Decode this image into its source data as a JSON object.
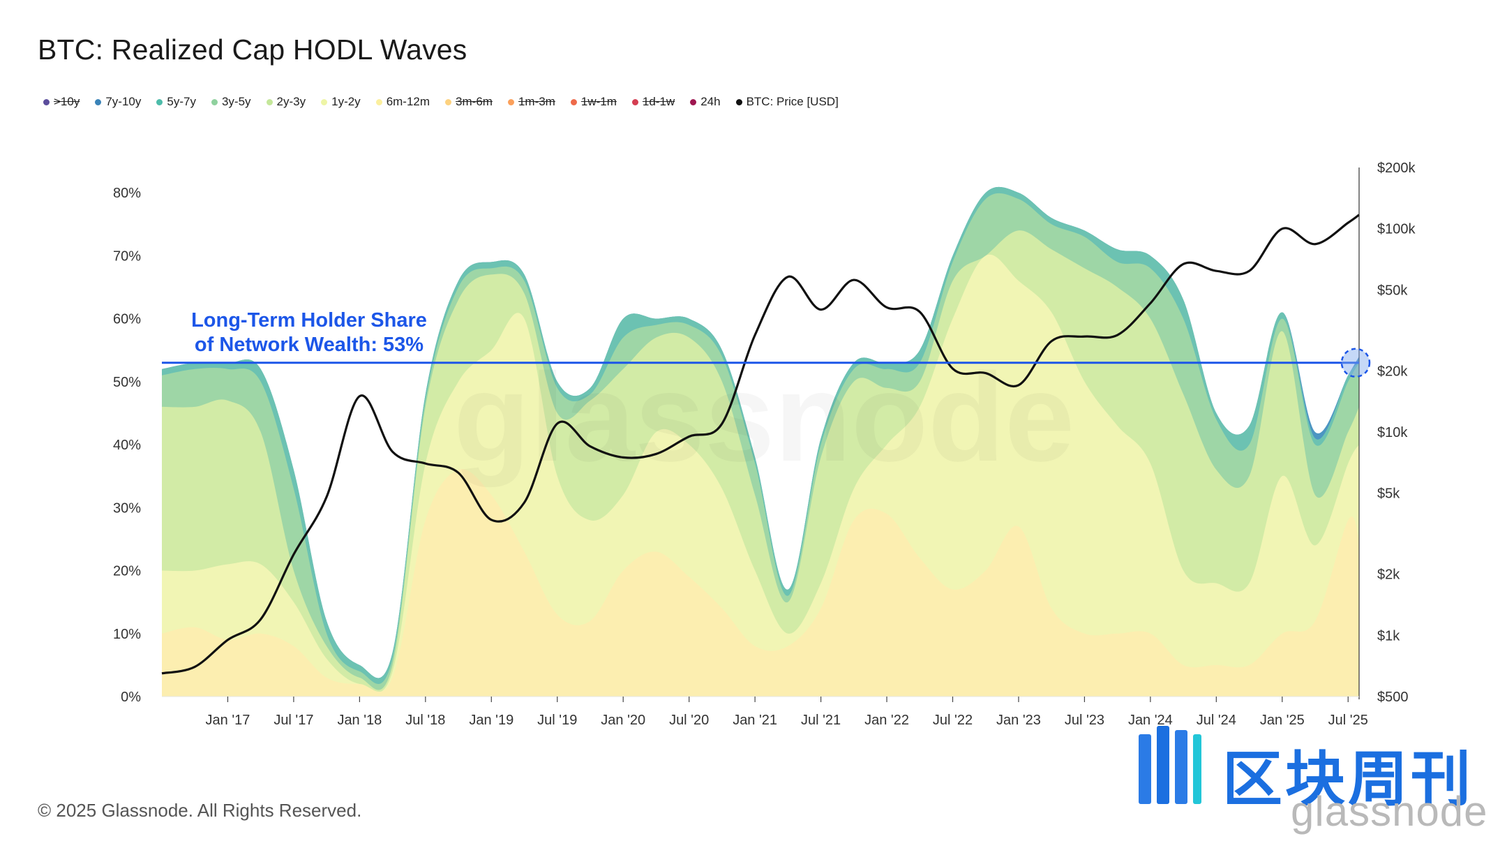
{
  "title": "BTC: Realized Cap HODL Waves",
  "copyright": "© 2025 Glassnode. All Rights Reserved.",
  "logo_text": "区块周刊",
  "watermark": "glassnode",
  "legend": [
    {
      "label": ">10y",
      "color": "#5b4d9c",
      "struck": true
    },
    {
      "label": "7y-10y",
      "color": "#3a83b8",
      "struck": false
    },
    {
      "label": "5y-7y",
      "color": "#4dbcaa",
      "struck": false
    },
    {
      "label": "3y-5y",
      "color": "#8fd19e",
      "struck": false
    },
    {
      "label": "2y-3y",
      "color": "#c4e79a",
      "struck": false
    },
    {
      "label": "1y-2y",
      "color": "#eef5a6",
      "struck": false
    },
    {
      "label": "6m-12m",
      "color": "#fbef9e",
      "struck": false
    },
    {
      "label": "3m-6m",
      "color": "#fdd27f",
      "struck": true
    },
    {
      "label": "1m-3m",
      "color": "#fba05b",
      "struck": true
    },
    {
      "label": "1w-1m",
      "color": "#ee6a4a",
      "struck": true
    },
    {
      "label": "1d-1w",
      "color": "#d43d51",
      "struck": true
    },
    {
      "label": "24h",
      "color": "#9e1650",
      "struck": false
    },
    {
      "label": "BTC: Price [USD]",
      "color": "#111111",
      "struck": false
    }
  ],
  "annotation": {
    "line1": "Long-Term Holder Share",
    "line2": "of Network Wealth: 53%",
    "value": 53,
    "color": "#1c56e8"
  },
  "chart_data": {
    "type": "area",
    "x": [
      "2016-07",
      "2016-10",
      "2017-01",
      "2017-04",
      "2017-07",
      "2017-10",
      "2018-01",
      "2018-04",
      "2018-07",
      "2018-10",
      "2019-01",
      "2019-04",
      "2019-07",
      "2019-10",
      "2020-01",
      "2020-04",
      "2020-07",
      "2020-10",
      "2021-01",
      "2021-04",
      "2021-07",
      "2021-10",
      "2022-01",
      "2022-04",
      "2022-07",
      "2022-10",
      "2023-01",
      "2023-04",
      "2023-07",
      "2023-10",
      "2024-01",
      "2024-04",
      "2024-07",
      "2024-10",
      "2025-01",
      "2025-04",
      "2025-07",
      "2025-08"
    ],
    "x_tick_labels": [
      "Jan '17",
      "Jul '17",
      "Jan '18",
      "Jul '18",
      "Jan '19",
      "Jul '19",
      "Jan '20",
      "Jul '20",
      "Jan '21",
      "Jul '21",
      "Jan '22",
      "Jul '22",
      "Jan '23",
      "Jul '23",
      "Jan '24",
      "Jul '24",
      "Jan '25",
      "Jul '25"
    ],
    "x_tick_dates": [
      "2017-01",
      "2017-07",
      "2018-01",
      "2018-07",
      "2019-01",
      "2019-07",
      "2020-01",
      "2020-07",
      "2021-01",
      "2021-07",
      "2022-01",
      "2022-07",
      "2023-01",
      "2023-07",
      "2024-01",
      "2024-07",
      "2025-01",
      "2025-07"
    ],
    "y_left": {
      "ticks": [
        "0%",
        "10%",
        "20%",
        "30%",
        "40%",
        "50%",
        "60%",
        "70%",
        "80%"
      ],
      "range": [
        0,
        84
      ]
    },
    "y_right": {
      "ticks": [
        "$500",
        "$1k",
        "$2k",
        "$5k",
        "$10k",
        "$20k",
        "$50k",
        "$100k",
        "$200k"
      ],
      "tick_values": [
        500,
        1000,
        2000,
        5000,
        10000,
        20000,
        50000,
        100000,
        200000
      ],
      "scale": "log",
      "range": [
        500,
        200000
      ]
    },
    "series": [
      {
        "name": "6m-12m",
        "color": "#fceeb0",
        "values": [
          10,
          11,
          9,
          10,
          8,
          3,
          2,
          3,
          28,
          36,
          32,
          23,
          13,
          12,
          20,
          23,
          19,
          14,
          8,
          8,
          14,
          28,
          29,
          22,
          17,
          20,
          27,
          14,
          10,
          10,
          10,
          5,
          5,
          5,
          10,
          12,
          28,
          25
        ]
      },
      {
        "name": "1y-2y",
        "color": "#f1f5b4",
        "values": [
          20,
          20,
          21,
          21,
          15,
          6,
          2,
          4,
          37,
          50,
          55,
          60,
          35,
          28,
          32,
          42,
          40,
          33,
          20,
          10,
          18,
          33,
          40,
          46,
          60,
          70,
          66,
          61,
          50,
          43,
          37,
          20,
          18,
          18,
          35,
          24,
          37,
          40
        ]
      },
      {
        "name": "2y-3y",
        "color": "#d2eba6",
        "values": [
          46,
          46,
          47,
          42,
          20,
          8,
          3,
          5,
          46,
          63,
          67,
          64,
          45,
          47,
          52,
          57,
          57,
          50,
          32,
          15,
          38,
          50,
          49,
          50,
          66,
          70,
          74,
          71,
          68,
          65,
          60,
          48,
          36,
          35,
          58,
          32,
          42,
          46
        ]
      },
      {
        "name": "3y-5y",
        "color": "#9ed6a6",
        "values": [
          51,
          52,
          52,
          50,
          33,
          10,
          4,
          6,
          47,
          65,
          68,
          66,
          49,
          48,
          57,
          59,
          59,
          54,
          37,
          16,
          40,
          52,
          52,
          53,
          69,
          79,
          79,
          75,
          73,
          69,
          68,
          60,
          44,
          40,
          60,
          40,
          50,
          53
        ]
      },
      {
        "name": "5y-7y",
        "color": "#6cc2b2",
        "values": [
          52,
          53,
          53,
          52,
          36,
          12,
          5,
          7,
          48,
          66,
          69,
          67,
          50,
          49,
          60,
          60,
          60,
          55,
          38,
          17,
          41,
          53,
          53,
          55,
          70,
          80,
          80,
          76,
          74,
          71,
          70,
          63,
          45,
          43,
          61,
          41,
          51,
          53
        ]
      },
      {
        "name": "7y-10y",
        "color": "#4c95c2",
        "values": [
          52,
          53,
          53,
          52,
          36,
          12,
          5,
          7,
          48,
          66,
          69,
          67,
          50,
          49,
          60,
          60,
          60,
          55,
          38,
          17,
          41,
          53,
          53,
          55,
          70,
          80,
          80,
          76,
          74,
          71,
          70,
          63,
          45,
          43,
          61,
          42,
          51,
          54
        ]
      }
    ],
    "price": {
      "name": "BTC: Price [USD]",
      "color": "#111111",
      "values": [
        650,
        700,
        950,
        1200,
        2500,
        4800,
        15000,
        8000,
        7000,
        6300,
        3700,
        4500,
        11000,
        8500,
        7500,
        7800,
        9500,
        11000,
        30000,
        58000,
        40000,
        56000,
        41000,
        39000,
        20500,
        19500,
        17000,
        28000,
        29500,
        30000,
        43000,
        67000,
        62000,
        62000,
        100000,
        84000,
        107000,
        117000
      ]
    }
  }
}
